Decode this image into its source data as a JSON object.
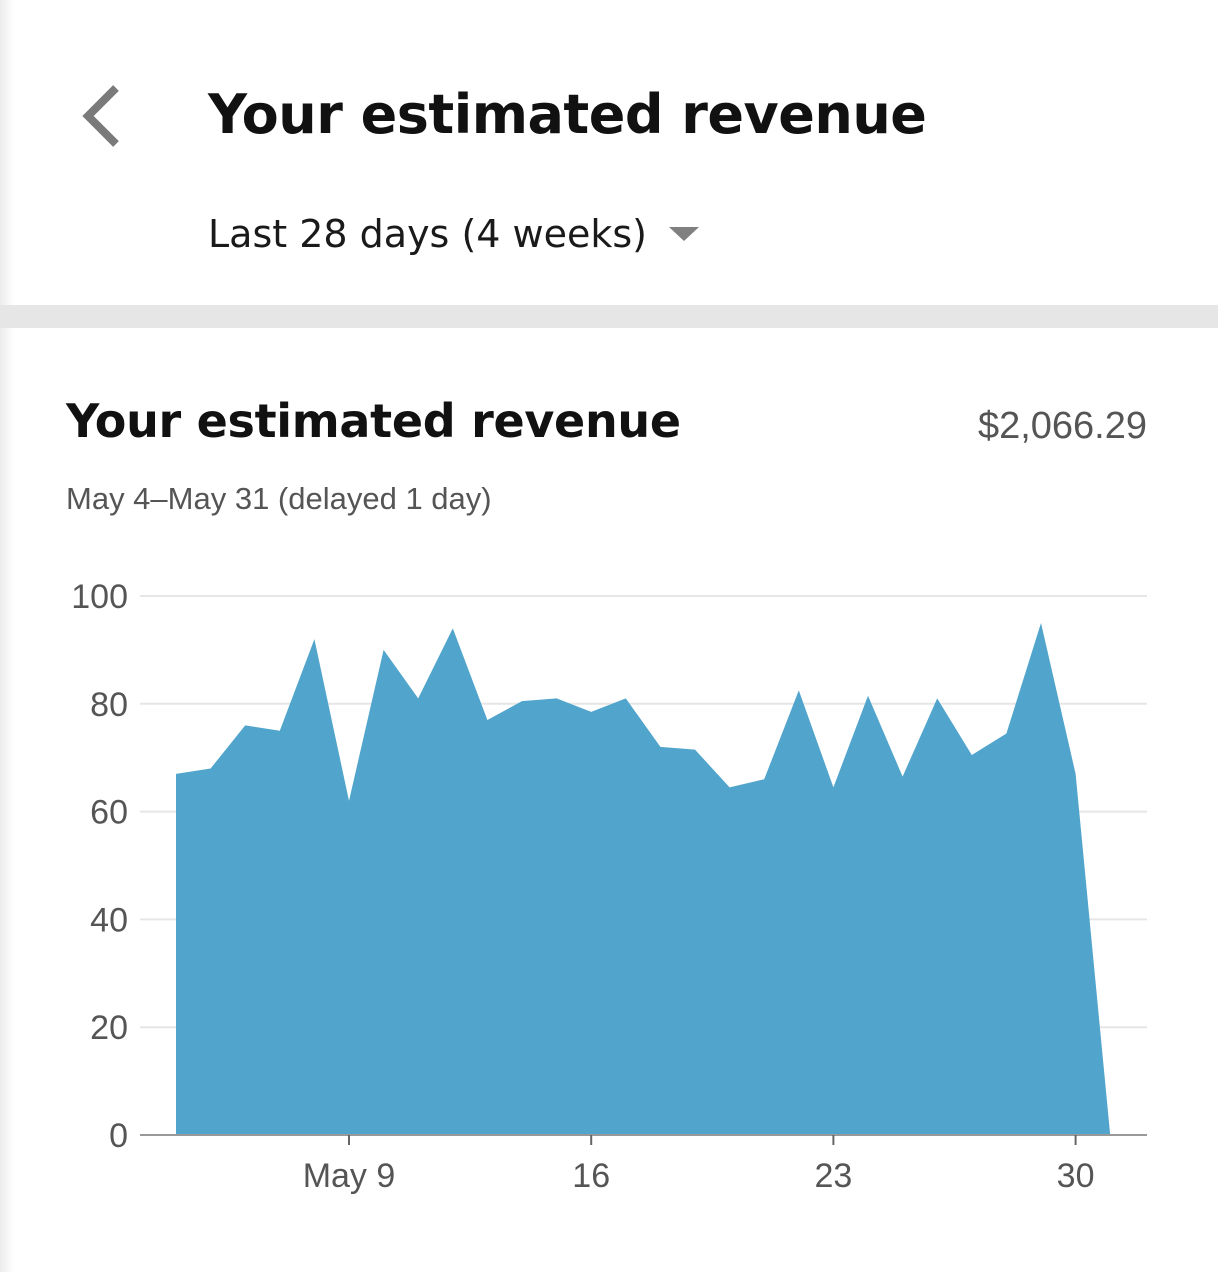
{
  "header": {
    "title": "Your estimated revenue",
    "back_icon": "chevron-left-icon",
    "date_range": "Last 28 days (4 weeks)",
    "dropdown_icon": "caret-down-icon"
  },
  "card": {
    "title": "Your estimated revenue",
    "total": "$2,066.29",
    "subtitle": "May 4–May 31 (delayed 1 day)"
  },
  "colors": {
    "area_fill": "#51a4cc",
    "gridline": "#e6e6e6",
    "axis": "#999999",
    "divider": "#e6e6e6"
  },
  "chart_data": {
    "type": "area",
    "title": "",
    "xlabel": "",
    "ylabel": "",
    "ylim": [
      0,
      100
    ],
    "y_ticks": [
      "0",
      "20",
      "40",
      "60",
      "80",
      "100"
    ],
    "x_ticks": [
      {
        "label": "May 9",
        "day": 9
      },
      {
        "label": "16",
        "day": 16
      },
      {
        "label": "23",
        "day": 23
      },
      {
        "label": "30",
        "day": 30
      }
    ],
    "grid": true,
    "series": [
      {
        "x": [
          4,
          5,
          6,
          7,
          8,
          9,
          10,
          11,
          12,
          13,
          14,
          15,
          16,
          17,
          18,
          19,
          20,
          21,
          22,
          23,
          24,
          25,
          26,
          27,
          28,
          29,
          30,
          31
        ],
        "values": [
          67,
          68,
          76,
          75,
          92,
          62,
          90,
          81,
          94,
          77,
          80.5,
          81,
          78.5,
          81,
          72,
          71.5,
          64.5,
          66,
          82.5,
          64.5,
          81.5,
          66.5,
          81,
          70.5,
          74.5,
          95,
          67,
          0
        ]
      }
    ]
  }
}
